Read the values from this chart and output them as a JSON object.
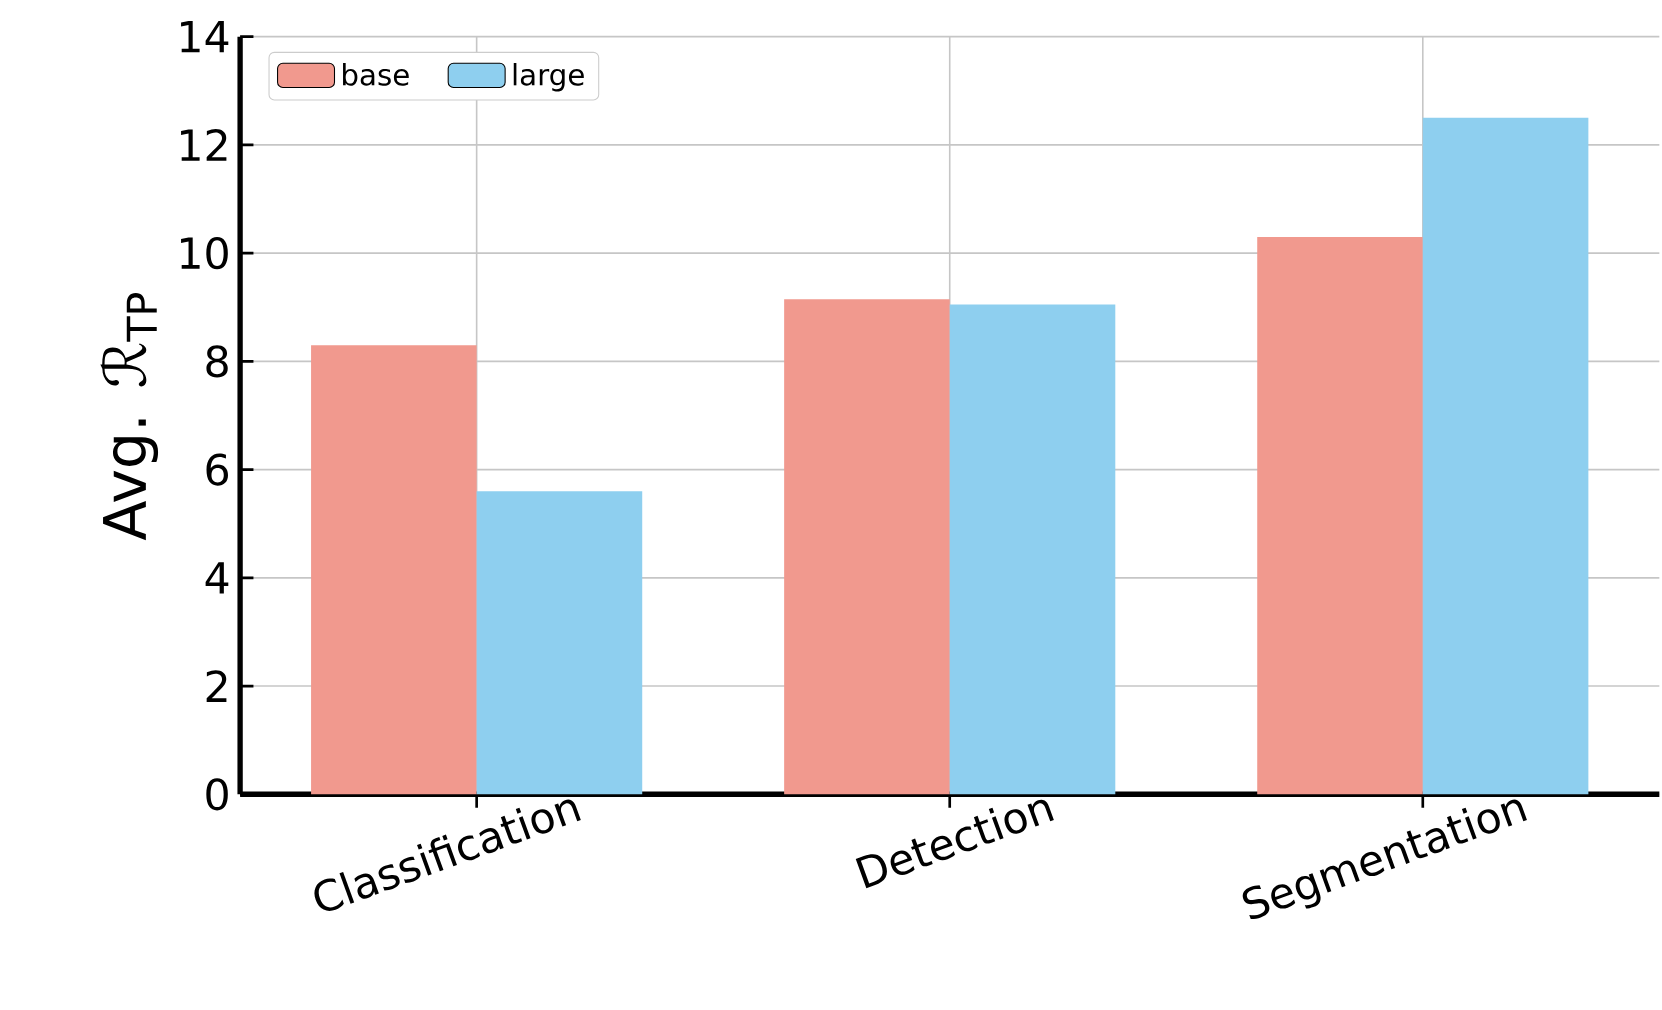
{
  "chart_data": {
    "type": "bar",
    "ylabel": "Avg. ℛ$_{TP}$",
    "categories": [
      "Classification",
      "Detection",
      "Segmentation"
    ],
    "series": [
      {
        "name": "base",
        "color": "#f1998e",
        "values": [
          8.3,
          9.15,
          10.3
        ]
      },
      {
        "name": "large",
        "color": "#8ecfef",
        "values": [
          5.6,
          9.05,
          12.5
        ]
      }
    ],
    "ylim": [
      0,
      14
    ],
    "yticks": [
      0,
      2,
      4,
      6,
      8,
      10,
      12,
      14
    ],
    "grid": true,
    "legend": "top left"
  }
}
